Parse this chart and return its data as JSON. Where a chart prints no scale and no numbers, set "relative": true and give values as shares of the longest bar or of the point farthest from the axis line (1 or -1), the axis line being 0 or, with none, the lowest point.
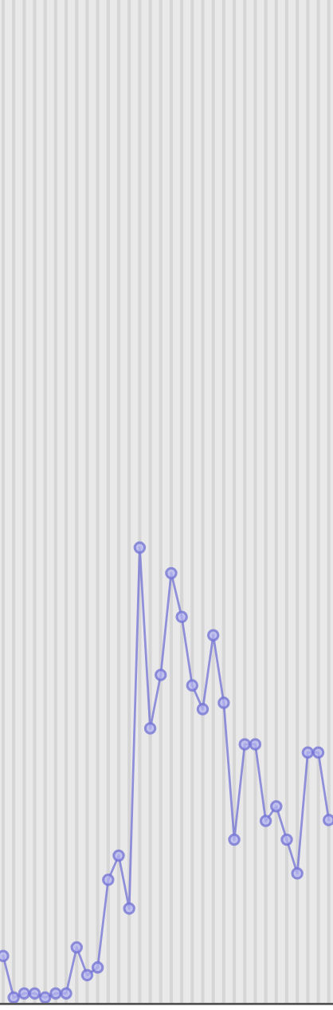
{
  "chart_data": {
    "type": "line",
    "relative": true,
    "categories": [
      null,
      null,
      null,
      null,
      null,
      null,
      null,
      null,
      null,
      null,
      null,
      null,
      null,
      null,
      null,
      null,
      null,
      null,
      null,
      null,
      null,
      null,
      null,
      null,
      null,
      null,
      null,
      null,
      null,
      null,
      null,
      null
    ],
    "series": [
      {
        "color": "#7272d4",
        "values": [
          0.105,
          0.014,
          0.023,
          0.023,
          0.014,
          0.023,
          0.023,
          0.124,
          0.063,
          0.08,
          0.272,
          0.325,
          0.209,
          1,
          0.604,
          0.721,
          0.944,
          0.848,
          0.698,
          0.646,
          0.808,
          0.66,
          0.36,
          0.569,
          0.569,
          0.401,
          0.433,
          0.36,
          0.286,
          0.551,
          0.551,
          0.403
        ]
      }
    ],
    "marker": "circle",
    "line_style": "solid",
    "grid": "x",
    "legend": false
  }
}
